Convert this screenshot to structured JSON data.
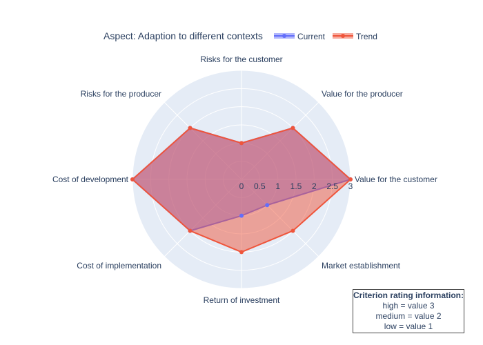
{
  "chart_data": {
    "type": "radar",
    "title": "Aspect: Adaption to different contexts",
    "categories": [
      "Value for the customer",
      "Value for the producer",
      "Risks for the customer",
      "Risks for the producer",
      "Cost of development",
      "Cost of implementation",
      "Return of investment",
      "Market establishment"
    ],
    "radial_range": [
      0,
      3
    ],
    "radial_ticks": [
      "0",
      "0.5",
      "1",
      "1.5",
      "2",
      "2.5",
      "3"
    ],
    "series": [
      {
        "name": "Current",
        "color": "#636efa",
        "values": [
          3,
          2,
          1,
          2,
          3,
          2,
          1,
          1
        ]
      },
      {
        "name": "Trend",
        "color": "#ef553b",
        "values": [
          3,
          2,
          1,
          2,
          3,
          2,
          2,
          2
        ]
      }
    ],
    "legend_position": "top"
  },
  "info": {
    "heading": "Criterion rating information:",
    "lines": [
      "high = value 3",
      "medium = value 2",
      "low = value 1"
    ]
  }
}
